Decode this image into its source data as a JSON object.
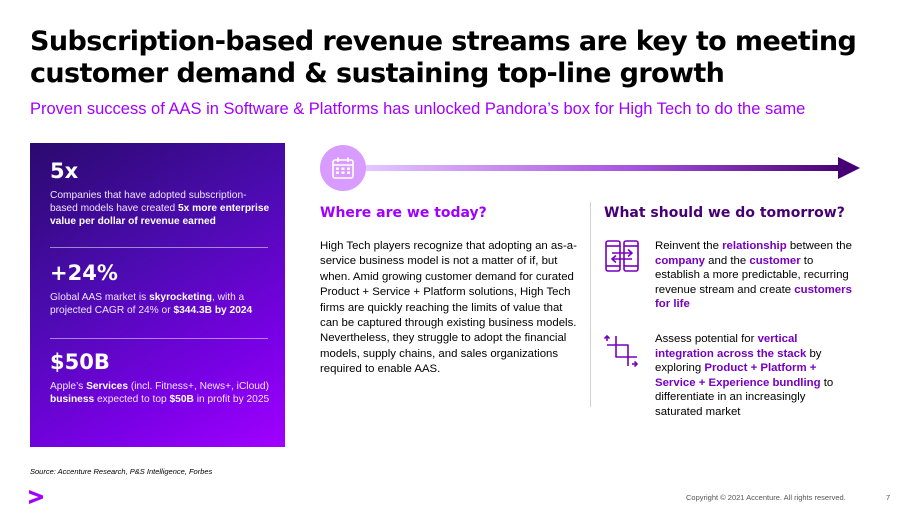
{
  "title": "Subscription-based revenue streams are key to meeting customer demand & sustaining top-line growth",
  "subtitle": "Proven success of AAS in Software & Platforms has unlocked Pandora’s box for High Tech to do the same",
  "colors": {
    "accent": "#a100ff",
    "dark_purple": "#460073",
    "highlight": "#7500c0",
    "circle": "#d89bff"
  },
  "stats": [
    {
      "value": "5x",
      "desc_parts": [
        {
          "text": "Companies that have adopted subscription-based models have created ",
          "bold": false
        },
        {
          "text": "5x more enterprise value per dollar of revenue earned",
          "bold": true
        }
      ]
    },
    {
      "value": "+24%",
      "desc_parts": [
        {
          "text": "Global AAS market is ",
          "bold": false
        },
        {
          "text": "skyrocketing",
          "bold": true
        },
        {
          "text": ", with a projected CAGR of 24% or ",
          "bold": false
        },
        {
          "text": "$344.3B",
          "bold": true
        },
        {
          "text": " ",
          "bold": false
        },
        {
          "text": "by 2024",
          "bold": true
        }
      ]
    },
    {
      "value": "$50B",
      "desc_parts": [
        {
          "text": "Apple’s ",
          "bold": false
        },
        {
          "text": "Services",
          "bold": true
        },
        {
          "text": " (incl. Fitness+, News+, iCloud) ",
          "bold": false
        },
        {
          "text": "business",
          "bold": true
        },
        {
          "text": " expected to top ",
          "bold": false
        },
        {
          "text": "$50B",
          "bold": true
        },
        {
          "text": " in profit by 2025",
          "bold": false
        }
      ]
    }
  ],
  "timeline": {
    "icon": "calendar-icon"
  },
  "left_section": {
    "heading": "Where are we today?",
    "body": "High Tech players recognize that adopting an as-a-service business model is not a matter of if, but when. Amid growing customer demand for curated Product + Service + Platform solutions, High Tech firms are quickly reaching the limits of value that can be captured through existing business models. Nevertheless, they struggle to adopt the financial models, supply chains, and sales organizations required to enable AAS."
  },
  "right_section": {
    "heading": "What should we do tomorrow?",
    "items": [
      {
        "icon": "device-exchange-icon",
        "parts": [
          {
            "text": "Reinvent the ",
            "hl": false
          },
          {
            "text": "relationship",
            "hl": true
          },
          {
            "text": " between the ",
            "hl": false
          },
          {
            "text": "company",
            "hl": true
          },
          {
            "text": " and the ",
            "hl": false
          },
          {
            "text": "customer",
            "hl": true
          },
          {
            "text": " to establish a more predictable, recurring revenue stream and create ",
            "hl": false
          },
          {
            "text": "customers for life",
            "hl": true
          }
        ]
      },
      {
        "icon": "crop-arrows-icon",
        "parts": [
          {
            "text": "Assess potential for ",
            "hl": false
          },
          {
            "text": "vertical integration across the stack",
            "hl": true
          },
          {
            "text": " by exploring ",
            "hl": false
          },
          {
            "text": "Product + Platform + Service + Experience bundling",
            "hl": true
          },
          {
            "text": " to differentiate in an increasingly saturated market",
            "hl": false
          }
        ]
      }
    ]
  },
  "source": "Source: Accenture Research, P&S Intelligence, Forbes",
  "footer": {
    "logo": "accenture-logo-icon",
    "copyright": "Copyright © 2021 Accenture. All rights reserved.",
    "page_number": "7"
  }
}
